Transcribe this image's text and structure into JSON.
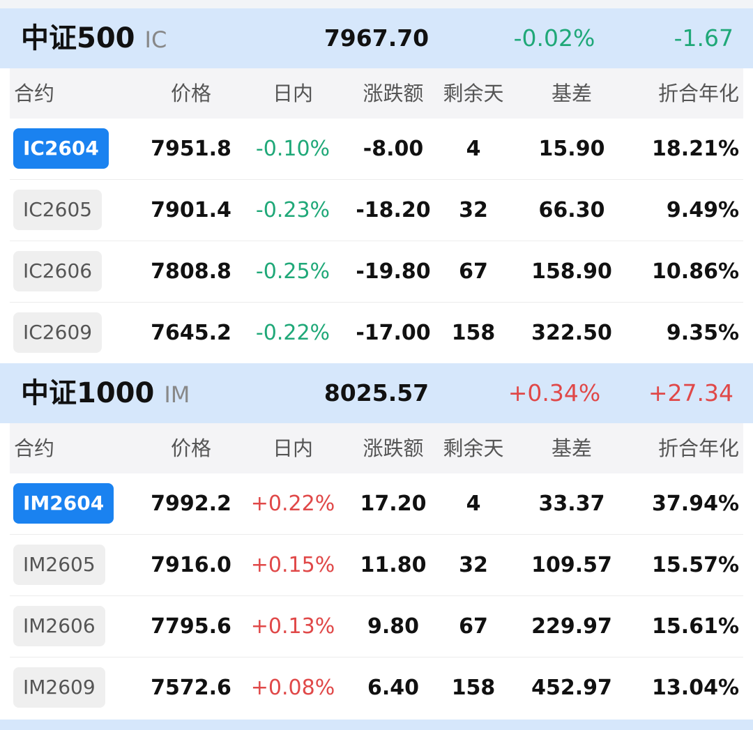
{
  "sections": [
    {
      "name": "中证500",
      "code": "IC",
      "index_price": "7967.70",
      "index_pct": "-0.02%",
      "index_change": "-1.67",
      "direction": "down",
      "columns": [
        "合约",
        "价格",
        "日内",
        "涨跌额",
        "剩余天",
        "基差",
        "折合年化"
      ],
      "rows": [
        {
          "contract": "IC2604",
          "price": "7951.8",
          "intraday": "-0.10%",
          "change": "-8.00",
          "days": "4",
          "basis": "15.90",
          "annualized": "18.21%",
          "selected": true
        },
        {
          "contract": "IC2605",
          "price": "7901.4",
          "intraday": "-0.23%",
          "change": "-18.20",
          "days": "32",
          "basis": "66.30",
          "annualized": "9.49%",
          "selected": false
        },
        {
          "contract": "IC2606",
          "price": "7808.8",
          "intraday": "-0.25%",
          "change": "-19.80",
          "days": "67",
          "basis": "158.90",
          "annualized": "10.86%",
          "selected": false
        },
        {
          "contract": "IC2609",
          "price": "7645.2",
          "intraday": "-0.22%",
          "change": "-17.00",
          "days": "158",
          "basis": "322.50",
          "annualized": "9.35%",
          "selected": false
        }
      ]
    },
    {
      "name": "中证1000",
      "code": "IM",
      "index_price": "8025.57",
      "index_pct": "+0.34%",
      "index_change": "+27.34",
      "direction": "up",
      "columns": [
        "合约",
        "价格",
        "日内",
        "涨跌额",
        "剩余天",
        "基差",
        "折合年化"
      ],
      "rows": [
        {
          "contract": "IM2604",
          "price": "7992.2",
          "intraday": "+0.22%",
          "change": "17.20",
          "days": "4",
          "basis": "33.37",
          "annualized": "37.94%",
          "selected": true
        },
        {
          "contract": "IM2605",
          "price": "7916.0",
          "intraday": "+0.15%",
          "change": "11.80",
          "days": "32",
          "basis": "109.57",
          "annualized": "15.57%",
          "selected": false
        },
        {
          "contract": "IM2606",
          "price": "7795.6",
          "intraday": "+0.13%",
          "change": "9.80",
          "days": "67",
          "basis": "229.97",
          "annualized": "15.61%",
          "selected": false
        },
        {
          "contract": "IM2609",
          "price": "7572.6",
          "intraday": "+0.08%",
          "change": "6.40",
          "days": "158",
          "basis": "452.97",
          "annualized": "13.04%",
          "selected": false
        }
      ]
    }
  ],
  "colors": {
    "up": "#e04848",
    "down": "#1fa878",
    "accent": "#1a82f0",
    "header_bg": "#d6e7fb"
  }
}
